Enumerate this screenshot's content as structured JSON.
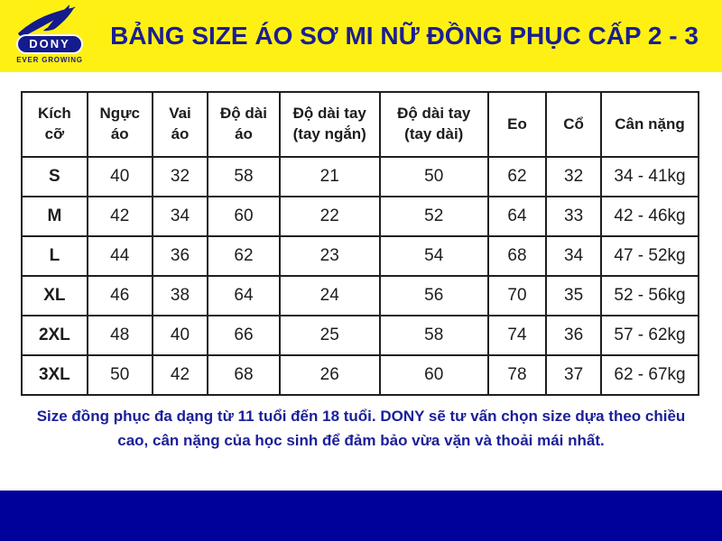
{
  "colors": {
    "band_yellow": "#FFF014",
    "title_navy": "#1B1E91",
    "note_navy": "#1B2099",
    "bottom_bar_navy": "#00009B",
    "table_border_black": "#1F1F1F"
  },
  "header": {
    "logo_brand": "DONY",
    "logo_tagline": "EVER GROWING",
    "title": "BẢNG SIZE ÁO SƠ MI NỮ ĐỒNG PHỤC CẤP 2 - 3"
  },
  "chart_data": {
    "type": "table",
    "title": "BẢNG SIZE ÁO SƠ MI NỮ ĐỒNG PHỤC CẤP 2 - 3",
    "columns": [
      [
        "Kích",
        "cỡ"
      ],
      [
        "Ngực",
        "áo"
      ],
      [
        "Vai",
        "áo"
      ],
      [
        "Độ dài",
        "áo"
      ],
      [
        "Độ dài tay",
        "(tay ngắn)"
      ],
      [
        "Độ dài tay",
        "(tay dài)"
      ],
      [
        "Eo"
      ],
      [
        "Cổ"
      ],
      [
        "Cân nặng"
      ]
    ],
    "rows": [
      [
        "S",
        "40",
        "32",
        "58",
        "21",
        "50",
        "62",
        "32",
        "34 - 41kg"
      ],
      [
        "M",
        "42",
        "34",
        "60",
        "22",
        "52",
        "64",
        "33",
        "42 - 46kg"
      ],
      [
        "L",
        "44",
        "36",
        "62",
        "23",
        "54",
        "68",
        "34",
        "47 - 52kg"
      ],
      [
        "XL",
        "46",
        "38",
        "64",
        "24",
        "56",
        "70",
        "35",
        "52 - 56kg"
      ],
      [
        "2XL",
        "48",
        "40",
        "66",
        "25",
        "58",
        "74",
        "36",
        "57 - 62kg"
      ],
      [
        "3XL",
        "50",
        "42",
        "68",
        "26",
        "60",
        "78",
        "37",
        "62 - 67kg"
      ]
    ]
  },
  "footer": {
    "note": "Size đồng phục đa dạng từ 11 tuổi đến 18 tuổi. DONY sẽ tư vấn chọn size dựa theo chiều cao, cân nặng của học sinh để đảm bảo vừa vặn và thoải mái nhất."
  }
}
